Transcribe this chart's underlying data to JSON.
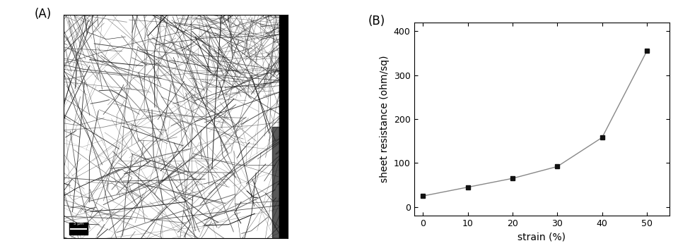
{
  "panel_A_label": "(A)",
  "panel_B_label": "(B)",
  "x_data": [
    0,
    10,
    20,
    30,
    40,
    50
  ],
  "y_data": [
    25,
    45,
    65,
    92,
    158,
    355
  ],
  "xlabel": "strain (%)",
  "ylabel": "sheet resistance (ohm/sq)",
  "xlim": [
    -2,
    55
  ],
  "ylim": [
    -20,
    420
  ],
  "xticks": [
    0,
    10,
    20,
    30,
    40,
    50
  ],
  "yticks": [
    0,
    100,
    200,
    300,
    400
  ],
  "line_color": "#888888",
  "marker_color": "#111111",
  "marker": "s",
  "marker_size": 5,
  "label_fontsize": 10,
  "tick_fontsize": 9,
  "panel_label_fontsize": 12,
  "figure_bg": "#ffffff",
  "axes_bg": "#ffffff",
  "nanowire_count": 500,
  "nanowire_seed": 12345
}
